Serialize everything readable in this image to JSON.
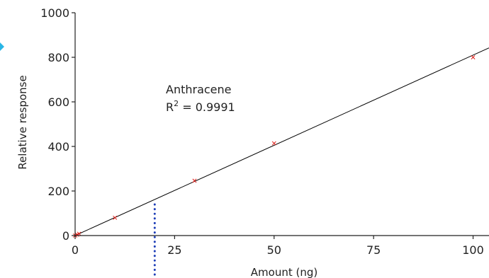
{
  "chart_data": {
    "type": "scatter",
    "title": "",
    "xlabel": "Amount (ng)",
    "ylabel": "Relative response",
    "xlim": [
      0,
      104
    ],
    "ylim": [
      0,
      1000
    ],
    "xticks": [
      "0",
      "25",
      "50",
      "75",
      "100"
    ],
    "yticks": [
      "0",
      "200",
      "400",
      "600",
      "800",
      "1000"
    ],
    "grid": false,
    "series": [
      {
        "points": [
          {
            "x": 0,
            "y": 0
          },
          {
            "x": 0.5,
            "y": 4
          },
          {
            "x": 1,
            "y": 8
          },
          {
            "x": 10,
            "y": 80
          },
          {
            "x": 30,
            "y": 246
          },
          {
            "x": 50,
            "y": 414
          },
          {
            "x": 100,
            "y": 800
          }
        ],
        "marker": "x",
        "color": "#e0201b"
      }
    ],
    "fit_line": {
      "slope": 8.1,
      "intercept": 0,
      "x_range": [
        0,
        104
      ],
      "color": "#000000"
    },
    "reference_line": {
      "x": 20,
      "style": "dotted",
      "color": "#1f3fb8"
    },
    "annotation": {
      "line1": "Anthracene",
      "r_prefix": "R",
      "r_sup": "2",
      "r_value": " = 0.9991"
    }
  },
  "left_arrow_color": "#29b6e6"
}
